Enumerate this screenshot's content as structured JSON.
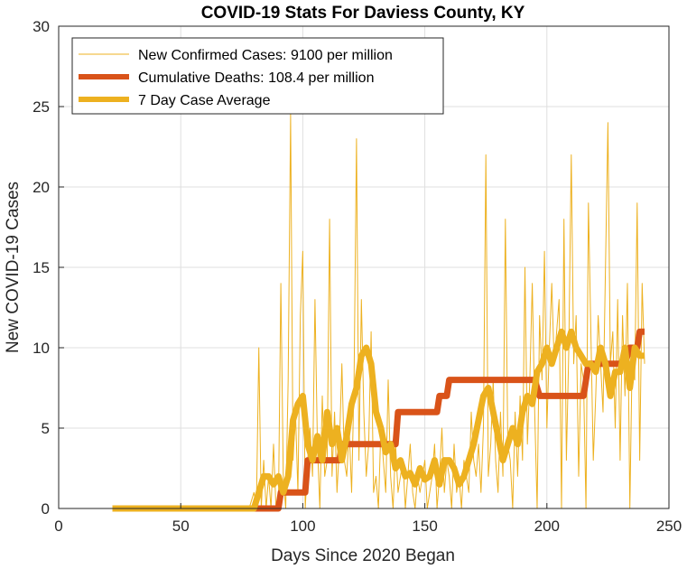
{
  "chart_data": {
    "type": "line",
    "title": "COVID-19 Stats For Daviess County, KY",
    "xlabel": "Days Since 2020 Began",
    "ylabel": "New COVID-19 Cases",
    "xlim": [
      0,
      250
    ],
    "ylim": [
      0,
      30
    ],
    "xticks": [
      0,
      50,
      100,
      150,
      200,
      250
    ],
    "yticks": [
      0,
      5,
      10,
      15,
      20,
      25,
      30
    ],
    "grid": true,
    "legend_position": "top-left",
    "series": [
      {
        "name": "New Confirmed Cases: 9100 per million",
        "color": "#EDB120",
        "style": "thin",
        "x": [
          22,
          40,
          60,
          78,
          80,
          81,
          82,
          83,
          84,
          85,
          86,
          87,
          88,
          89,
          90,
          91,
          92,
          93,
          94,
          95,
          96,
          97,
          98,
          99,
          100,
          101,
          102,
          103,
          104,
          105,
          106,
          107,
          108,
          109,
          110,
          111,
          112,
          113,
          114,
          115,
          116,
          117,
          118,
          119,
          120,
          121,
          122,
          123,
          124,
          125,
          126,
          127,
          128,
          129,
          130,
          131,
          132,
          133,
          134,
          135,
          136,
          137,
          138,
          139,
          140,
          141,
          142,
          143,
          144,
          145,
          146,
          147,
          148,
          149,
          150,
          151,
          152,
          153,
          154,
          155,
          156,
          157,
          158,
          159,
          160,
          161,
          162,
          163,
          164,
          165,
          166,
          167,
          168,
          169,
          170,
          171,
          172,
          173,
          174,
          175,
          176,
          177,
          178,
          179,
          180,
          181,
          182,
          183,
          184,
          185,
          186,
          187,
          188,
          189,
          190,
          191,
          192,
          193,
          194,
          195,
          196,
          197,
          198,
          199,
          200,
          201,
          202,
          203,
          204,
          205,
          206,
          207,
          208,
          209,
          210,
          211,
          212,
          213,
          214,
          215,
          216,
          217,
          218,
          219,
          220,
          221,
          222,
          223,
          224,
          225,
          226,
          227,
          228,
          229,
          230,
          231,
          232,
          233,
          234,
          235,
          236,
          237,
          238,
          239,
          240
        ],
        "y": [
          0,
          0,
          0,
          0,
          1,
          0,
          10,
          0,
          3,
          0,
          2,
          0,
          4,
          0,
          0,
          14,
          2,
          0,
          8,
          24.5,
          3,
          6,
          1,
          12,
          16,
          0,
          3,
          5,
          2,
          13,
          4,
          0,
          7,
          2,
          3,
          18,
          2,
          6,
          1,
          4,
          9,
          3,
          2,
          5,
          1,
          8,
          23,
          3,
          13,
          6,
          2,
          4,
          11,
          1,
          2,
          0,
          5,
          3,
          1,
          8,
          2,
          0,
          4,
          1,
          2,
          3,
          0,
          2,
          4,
          1,
          0,
          2,
          1,
          2,
          3,
          0,
          1,
          2,
          4,
          0,
          2,
          5,
          1,
          3,
          2,
          0,
          4,
          1,
          2,
          0,
          3,
          2,
          1,
          6,
          3,
          2,
          4,
          1,
          5,
          22,
          2,
          4,
          8,
          3,
          1,
          6,
          2,
          18,
          4,
          3,
          0,
          6,
          2,
          7,
          3,
          15,
          4,
          8,
          14,
          6,
          0,
          12,
          8,
          16,
          5,
          10,
          14,
          9,
          11,
          13,
          0,
          18,
          3,
          10,
          22,
          9,
          12,
          2,
          9,
          8,
          0,
          19,
          11,
          3,
          7,
          12,
          9,
          6,
          15,
          24,
          9,
          11,
          5,
          13,
          3,
          12,
          7,
          14,
          0,
          10,
          8,
          19,
          3,
          14,
          9
        ],
        "values": [
          0,
          0,
          0,
          0,
          1,
          0,
          10,
          0,
          3,
          0,
          2,
          0,
          4,
          0,
          0,
          14,
          2,
          0,
          8,
          24.5,
          3,
          6,
          1,
          12,
          16,
          0,
          3,
          5,
          2,
          13,
          4,
          0,
          7,
          2,
          3,
          18,
          2,
          6,
          1,
          4,
          9,
          3,
          2,
          5,
          1,
          8,
          23,
          3,
          13,
          6,
          2,
          4,
          11,
          1,
          2,
          0,
          5,
          3,
          1,
          8,
          2,
          0,
          4,
          1,
          2,
          3,
          0,
          2,
          4,
          1,
          0,
          2,
          1,
          2,
          3,
          0,
          1,
          2,
          4,
          0,
          2,
          5,
          1,
          3,
          2,
          0,
          4,
          1,
          2,
          0,
          3,
          2,
          1,
          6,
          3,
          2,
          4,
          1,
          5,
          22,
          2,
          4,
          8,
          3,
          1,
          6,
          2,
          18,
          4,
          3,
          0,
          6,
          2,
          7,
          3,
          15,
          4,
          8,
          14,
          6,
          0,
          12,
          8,
          16,
          5,
          10,
          14,
          9,
          11,
          13,
          0,
          18,
          3,
          10,
          22,
          9,
          12,
          2,
          9,
          8,
          0,
          19,
          11,
          3,
          7,
          12,
          9,
          6,
          15,
          24,
          9,
          11,
          5,
          13,
          3,
          12,
          7,
          14,
          0,
          10,
          8,
          19,
          3,
          14,
          9
        ]
      },
      {
        "name": "Cumulative Deaths: 108.4 per million",
        "color": "#D95319",
        "style": "thick",
        "x": [
          22,
          90,
          91,
          101,
          102,
          115,
          116,
          138,
          139,
          155,
          156,
          159,
          160,
          195,
          197,
          211,
          213,
          215,
          217,
          232,
          234,
          237,
          238,
          240
        ],
        "y": [
          0,
          0,
          1,
          1,
          3,
          3,
          4,
          4,
          6,
          6,
          7,
          7,
          8,
          8,
          7,
          7,
          7,
          7,
          9,
          9,
          10,
          10,
          11,
          11
        ],
        "values": [
          0,
          0,
          1,
          1,
          3,
          3,
          4,
          4,
          6,
          6,
          7,
          7,
          8,
          8,
          7,
          7,
          7,
          7,
          9,
          9,
          10,
          10,
          11,
          11
        ]
      },
      {
        "name": "7 Day Case Average",
        "color": "#EDB120",
        "style": "thick",
        "x": [
          22,
          40,
          60,
          80,
          82,
          84,
          86,
          88,
          90,
          92,
          94,
          96,
          98,
          100,
          102,
          104,
          106,
          108,
          110,
          112,
          114,
          116,
          118,
          120,
          122,
          124,
          126,
          128,
          130,
          132,
          134,
          136,
          138,
          140,
          142,
          144,
          146,
          148,
          150,
          152,
          154,
          156,
          158,
          160,
          162,
          164,
          166,
          168,
          170,
          172,
          174,
          176,
          178,
          180,
          182,
          184,
          186,
          188,
          190,
          192,
          194,
          196,
          198,
          200,
          202,
          204,
          206,
          208,
          210,
          212,
          214,
          216,
          218,
          220,
          222,
          224,
          226,
          228,
          230,
          232,
          234,
          236,
          238,
          240
        ],
        "y": [
          0,
          0,
          0,
          0,
          1,
          2,
          2,
          1.5,
          2,
          1,
          2,
          5.5,
          6.5,
          7,
          4,
          3,
          4.5,
          3,
          6,
          4,
          5,
          3,
          4.5,
          6.5,
          7.5,
          9.5,
          10,
          9,
          6,
          5,
          3.5,
          4,
          2.5,
          3,
          2,
          2.2,
          1.5,
          2.5,
          1.8,
          2,
          3,
          1.5,
          3,
          3,
          2.5,
          1.5,
          2,
          3,
          4,
          5.5,
          7,
          7.5,
          6,
          4.5,
          3,
          4,
          5,
          4,
          6,
          7,
          6.5,
          8.5,
          9,
          10,
          9,
          10,
          11,
          10,
          11,
          10,
          9.5,
          9,
          9,
          8.5,
          10,
          9,
          7,
          8.5,
          8.5,
          10,
          7.5,
          10,
          9.5,
          9.5
        ],
        "values": [
          0,
          0,
          0,
          0,
          1,
          2,
          2,
          1.5,
          2,
          1,
          2,
          5.5,
          6.5,
          7,
          4,
          3,
          4.5,
          3,
          6,
          4,
          5,
          3,
          4.5,
          6.5,
          7.5,
          9.5,
          10,
          9,
          6,
          5,
          3.5,
          4,
          2.5,
          3,
          2,
          2.2,
          1.5,
          2.5,
          1.8,
          2,
          3,
          1.5,
          3,
          3,
          2.5,
          1.5,
          2,
          3,
          4,
          5.5,
          7,
          7.5,
          6,
          4.5,
          3,
          4,
          5,
          4,
          6,
          7,
          6.5,
          8.5,
          9,
          10,
          9,
          10,
          11,
          10,
          11,
          10,
          9.5,
          9,
          9,
          8.5,
          10,
          9,
          7,
          8.5,
          8.5,
          10,
          7.5,
          10,
          9.5,
          9.5
        ]
      }
    ]
  }
}
